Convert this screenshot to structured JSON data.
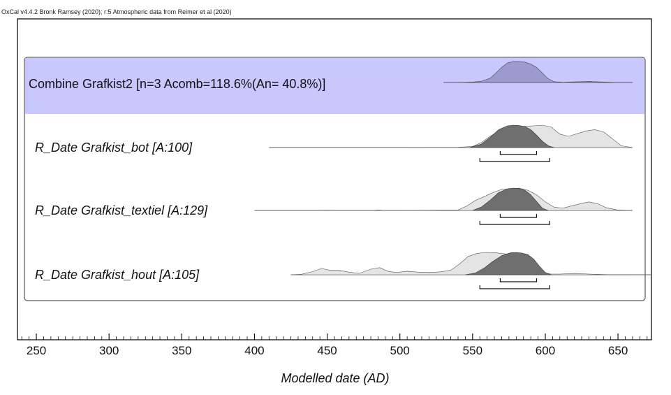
{
  "credit": "OxCal v4.4.2 Bronk Ramsey (2020); r:5 Atmospheric data from Reimer et al (2020)",
  "chart_data": {
    "type": "area",
    "xlabel": "Modelled date (AD)",
    "xlim": [
      237,
      673
    ],
    "xticks": [
      250,
      300,
      350,
      400,
      450,
      500,
      550,
      600,
      650
    ],
    "colors": {
      "combine_bg": "#c8c8ff",
      "combine_curve": "#9d9ad0",
      "prior": "#e4e4e4",
      "posterior": "#6f6f6f",
      "outline": "#333333"
    },
    "combine": {
      "label": "Combine Grafkist2 [n=3 Acomb=118.6%(An= 40.8%)]",
      "range": [
        530,
        660
      ],
      "curve": {
        "x": [
          540,
          550,
          556,
          562,
          566,
          570,
          574,
          578,
          582,
          586,
          590,
          594,
          598,
          602,
          606,
          612,
          620,
          630,
          640,
          650,
          660
        ],
        "y": [
          0,
          0.02,
          0.06,
          0.2,
          0.45,
          0.72,
          0.93,
          1,
          1,
          0.97,
          0.88,
          0.72,
          0.45,
          0.18,
          0.04,
          0.01,
          0.03,
          0.05,
          0.02,
          0,
          0
        ]
      }
    },
    "rows": [
      {
        "label": "R_Date Grafkist_bot [A:100]",
        "range": [
          410,
          660
        ],
        "prior": {
          "x": [
            410,
            500,
            540,
            550,
            556,
            562,
            568,
            574,
            580,
            586,
            592,
            598,
            604,
            610,
            616,
            622,
            628,
            634,
            640,
            646,
            652,
            660
          ],
          "y": [
            0,
            0,
            0.01,
            0.05,
            0.22,
            0.5,
            0.72,
            0.86,
            0.92,
            0.95,
            0.97,
            1,
            0.92,
            0.6,
            0.5,
            0.62,
            0.74,
            0.8,
            0.7,
            0.4,
            0.08,
            0
          ]
        },
        "posterior": {
          "x": [
            548,
            556,
            562,
            568,
            574,
            578,
            582,
            586,
            590,
            594,
            598,
            602,
            606
          ],
          "y": [
            0,
            0.15,
            0.45,
            0.8,
            0.97,
            1,
            0.98,
            0.93,
            0.8,
            0.55,
            0.28,
            0.08,
            0
          ]
        },
        "bracket68": [
          569,
          594
        ],
        "bracket95": [
          555,
          603
        ]
      },
      {
        "label": "R_Date Grafkist_textiel [A:129]",
        "range": [
          400,
          660
        ],
        "prior": {
          "x": [
            400,
            440,
            450,
            460,
            480,
            485,
            490,
            500,
            540,
            546,
            552,
            558,
            564,
            570,
            576,
            582,
            588,
            594,
            600,
            606,
            612,
            618,
            624,
            630,
            636,
            642,
            650,
            660
          ],
          "y": [
            0,
            0,
            0.01,
            0,
            0,
            0.02,
            0,
            0,
            0.02,
            0.2,
            0.45,
            0.62,
            0.8,
            0.94,
            0.97,
            1,
            0.9,
            0.7,
            0.38,
            0.15,
            0.1,
            0.2,
            0.3,
            0.38,
            0.3,
            0.12,
            0.02,
            0
          ]
        },
        "posterior": {
          "x": [
            550,
            556,
            562,
            568,
            574,
            578,
            582,
            586,
            590,
            594,
            598,
            602
          ],
          "y": [
            0,
            0.15,
            0.45,
            0.8,
            0.97,
            1,
            0.98,
            0.9,
            0.7,
            0.4,
            0.1,
            0
          ]
        },
        "bracket68": [
          569,
          594
        ],
        "bracket95": [
          555,
          603
        ]
      },
      {
        "label": "R_Date Grafkist_hout [A:105]",
        "range": [
          425,
          673
        ],
        "prior": {
          "x": [
            425,
            432,
            440,
            446,
            452,
            458,
            465,
            472,
            480,
            486,
            492,
            498,
            505,
            512,
            520,
            528,
            535,
            541,
            547,
            553,
            559,
            566,
            574,
            582,
            590,
            596,
            600,
            604,
            610,
            620,
            630,
            640,
            650,
            660
          ],
          "y": [
            0,
            0.02,
            0.14,
            0.28,
            0.2,
            0.2,
            0.12,
            0.06,
            0.25,
            0.32,
            0.15,
            0.1,
            0.16,
            0.12,
            0.1,
            0.13,
            0.2,
            0.48,
            0.82,
            0.95,
            1,
            0.98,
            0.92,
            0.8,
            0.55,
            0.22,
            0.08,
            0.03,
            0.03,
            0.06,
            0.03,
            0.01,
            0,
            0
          ]
        },
        "posterior": {
          "x": [
            545,
            552,
            558,
            564,
            570,
            576,
            580,
            584,
            588,
            592,
            596,
            600,
            604
          ],
          "y": [
            0,
            0.08,
            0.3,
            0.6,
            0.85,
            0.98,
            1,
            0.97,
            0.9,
            0.7,
            0.38,
            0.1,
            0
          ]
        },
        "bracket68": [
          569,
          594
        ],
        "bracket95": [
          555,
          603
        ]
      }
    ]
  }
}
